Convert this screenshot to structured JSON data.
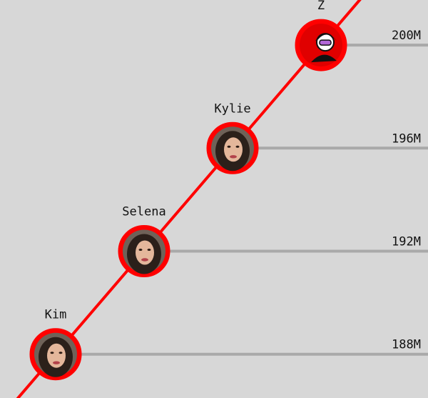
{
  "chart_data": {
    "type": "line",
    "title": "",
    "xlabel": "",
    "ylabel": "",
    "grid": true,
    "ylim": [
      186.3,
      201.75
    ],
    "y_ticks": [
      {
        "value": 188,
        "label": "188M"
      },
      {
        "value": 192,
        "label": "192M"
      },
      {
        "value": 196,
        "label": "196M"
      },
      {
        "value": 200,
        "label": "200M"
      }
    ],
    "series": [
      {
        "color": "#ff0000",
        "points": [
          {
            "label": "Kim",
            "x": 1,
            "y": 188
          },
          {
            "label": "Selena",
            "x": 2,
            "y": 192
          },
          {
            "label": "Kylie",
            "x": 3,
            "y": 196
          },
          {
            "label": "Z",
            "x": 4,
            "y": 200
          }
        ]
      }
    ]
  }
}
